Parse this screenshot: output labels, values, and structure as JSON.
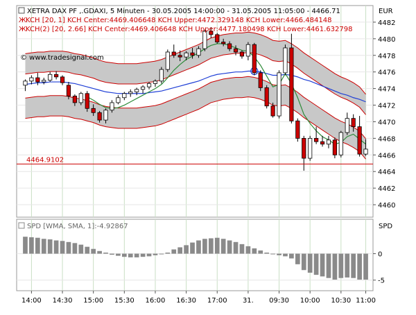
{
  "chart_data": [
    {
      "type": "candlestick",
      "title": "XETRA DAX PF ,.GDAXI, 5 Minuten - 30.05.2005 14:00:00 - 31.05.2005 11:05:00 - 4466.71",
      "currency": "EUR",
      "watermark": "© www.tradesignal.com",
      "indicator_labels": [
        "KCH [20, 1] KCH Center:4469.406648 KCH Upper:4472.329148 KCH Lower:4466.484148",
        "KCH(2) [20, 2.66] KCH Center:4469.406648 KCH Upper:4477.180498 KCH Lower:4461.632798"
      ],
      "y_ticks": [
        "4482",
        "4480",
        "4478",
        "4476",
        "4474",
        "4472",
        "4470",
        "4468",
        "4466",
        "4464",
        "4462",
        "4460"
      ],
      "ylim": [
        4458.5,
        4484
      ],
      "horizontal_line": {
        "value": 4464.91,
        "label": "4464.9102",
        "color": "#cc0000"
      },
      "x_ticks": [
        "14:00",
        "14:30",
        "15:00",
        "15:30",
        "16:00",
        "16:30",
        "17:00",
        "31.",
        "09:30",
        "10:00",
        "10:30",
        "11:00"
      ],
      "bar_count": 56,
      "candles": [
        {
          "o": 4474.4,
          "h": 4475.1,
          "l": 4473.7,
          "c": 4474.9
        },
        {
          "o": 4474.9,
          "h": 4475.6,
          "l": 4474.5,
          "c": 4475.3
        },
        {
          "o": 4475.3,
          "h": 4475.9,
          "l": 4474.4,
          "c": 4474.8
        },
        {
          "o": 4474.8,
          "h": 4475.3,
          "l": 4474.5,
          "c": 4475.0
        },
        {
          "o": 4475.0,
          "h": 4476.0,
          "l": 4474.8,
          "c": 4475.7
        },
        {
          "o": 4475.7,
          "h": 4476.1,
          "l": 4475.1,
          "c": 4475.4
        },
        {
          "o": 4475.4,
          "h": 4475.6,
          "l": 4474.4,
          "c": 4474.7
        },
        {
          "o": 4474.4,
          "h": 4474.8,
          "l": 4472.7,
          "c": 4473.1
        },
        {
          "o": 4473.1,
          "h": 4473.3,
          "l": 4471.9,
          "c": 4472.3
        },
        {
          "o": 4472.3,
          "h": 4473.6,
          "l": 4472.0,
          "c": 4473.4
        },
        {
          "o": 4473.4,
          "h": 4473.7,
          "l": 4471.2,
          "c": 4471.6
        },
        {
          "o": 4471.6,
          "h": 4472.1,
          "l": 4470.7,
          "c": 4471.1
        },
        {
          "o": 4471.1,
          "h": 4471.3,
          "l": 4469.9,
          "c": 4470.2
        },
        {
          "o": 4470.2,
          "h": 4471.6,
          "l": 4469.8,
          "c": 4471.4
        },
        {
          "o": 4471.4,
          "h": 4472.6,
          "l": 4471.1,
          "c": 4472.3
        },
        {
          "o": 4472.3,
          "h": 4473.2,
          "l": 4472.1,
          "c": 4472.9
        },
        {
          "o": 4472.9,
          "h": 4473.6,
          "l": 4472.6,
          "c": 4473.4
        },
        {
          "o": 4473.4,
          "h": 4473.9,
          "l": 4473.0,
          "c": 4473.6
        },
        {
          "o": 4473.6,
          "h": 4474.1,
          "l": 4473.2,
          "c": 4473.9
        },
        {
          "o": 4473.9,
          "h": 4474.4,
          "l": 4473.4,
          "c": 4474.2
        },
        {
          "o": 4474.2,
          "h": 4474.8,
          "l": 4473.9,
          "c": 4474.6
        },
        {
          "o": 4474.6,
          "h": 4475.1,
          "l": 4474.2,
          "c": 4474.9
        },
        {
          "o": 4474.9,
          "h": 4476.6,
          "l": 4474.6,
          "c": 4476.3
        },
        {
          "o": 4476.3,
          "h": 4478.7,
          "l": 4476.0,
          "c": 4478.4
        },
        {
          "o": 4478.4,
          "h": 4479.3,
          "l": 4477.7,
          "c": 4478.0
        },
        {
          "o": 4478.0,
          "h": 4478.6,
          "l": 4477.3,
          "c": 4477.8
        },
        {
          "o": 4477.8,
          "h": 4478.5,
          "l": 4477.4,
          "c": 4478.3
        },
        {
          "o": 4478.3,
          "h": 4478.9,
          "l": 4477.6,
          "c": 4478.0
        },
        {
          "o": 4478.0,
          "h": 4479.1,
          "l": 4477.7,
          "c": 4478.8
        },
        {
          "o": 4478.8,
          "h": 4481.1,
          "l": 4478.5,
          "c": 4480.9
        },
        {
          "o": 4480.9,
          "h": 4481.4,
          "l": 4480.1,
          "c": 4480.5
        },
        {
          "o": 4480.5,
          "h": 4480.7,
          "l": 4479.4,
          "c": 4479.6
        },
        {
          "o": 4479.6,
          "h": 4480.0,
          "l": 4479.1,
          "c": 4479.4
        },
        {
          "o": 4479.4,
          "h": 4479.7,
          "l": 4478.5,
          "c": 4478.8
        },
        {
          "o": 4478.8,
          "h": 4479.2,
          "l": 4478.0,
          "c": 4478.4
        },
        {
          "o": 4478.4,
          "h": 4478.6,
          "l": 4477.6,
          "c": 4477.9
        },
        {
          "o": 4477.9,
          "h": 4479.6,
          "l": 4477.4,
          "c": 4479.3
        },
        {
          "o": 4479.3,
          "h": 4479.5,
          "l": 4475.6,
          "c": 4475.9
        },
        {
          "o": 4475.9,
          "h": 4476.2,
          "l": 4473.7,
          "c": 4474.1
        },
        {
          "o": 4474.1,
          "h": 4474.4,
          "l": 4471.6,
          "c": 4471.9
        },
        {
          "o": 4471.9,
          "h": 4472.3,
          "l": 4470.5,
          "c": 4470.7
        },
        {
          "o": 4470.7,
          "h": 4476.2,
          "l": 4470.4,
          "c": 4475.9
        },
        {
          "o": 4475.9,
          "h": 4479.3,
          "l": 4475.6,
          "c": 4478.9
        },
        {
          "o": 4478.9,
          "h": 4480.6,
          "l": 4469.8,
          "c": 4470.1
        },
        {
          "o": 4470.1,
          "h": 4470.4,
          "l": 4467.6,
          "c": 4468.0
        },
        {
          "o": 4468.0,
          "h": 4468.3,
          "l": 4464.1,
          "c": 4465.6
        },
        {
          "o": 4465.6,
          "h": 4468.3,
          "l": 4465.3,
          "c": 4468.0
        },
        {
          "o": 4468.0,
          "h": 4469.4,
          "l": 4467.3,
          "c": 4467.6
        },
        {
          "o": 4467.6,
          "h": 4468.3,
          "l": 4467.0,
          "c": 4467.3
        },
        {
          "o": 4467.3,
          "h": 4468.3,
          "l": 4466.8,
          "c": 4467.8
        },
        {
          "o": 4467.8,
          "h": 4468.1,
          "l": 4465.6,
          "c": 4466.0
        },
        {
          "o": 4466.0,
          "h": 4468.9,
          "l": 4465.7,
          "c": 4468.7
        },
        {
          "o": 4468.7,
          "h": 4471.1,
          "l": 4468.4,
          "c": 4470.4
        },
        {
          "o": 4470.4,
          "h": 4470.9,
          "l": 4468.8,
          "c": 4469.4
        },
        {
          "o": 4469.4,
          "h": 4470.7,
          "l": 4465.8,
          "c": 4466.1
        },
        {
          "o": 4466.1,
          "h": 4467.9,
          "l": 4465.9,
          "c": 4466.7
        }
      ],
      "kch1": {
        "color": "#cc0000",
        "center": [
          4474.3,
          4474.4,
          4474.5,
          4474.5,
          4474.6,
          4474.6,
          4474.6,
          4474.5,
          4474.3,
          4474.2,
          4474.0,
          4473.8,
          4473.5,
          4473.3,
          4473.2,
          4473.1,
          4473.1,
          4473.1,
          4473.1,
          4473.2,
          4473.3,
          4473.4,
          4473.6,
          4473.9,
          4474.2,
          4474.5,
          4474.8,
          4475.1,
          4475.4,
          4475.8,
          4476.2,
          4476.4,
          4476.6,
          4476.7,
          4476.8,
          4476.8,
          4476.9,
          4476.8,
          4476.6,
          4476.3,
          4475.9,
          4475.8,
          4475.9,
          4475.5,
          4475.0,
          4474.4,
          4473.9,
          4473.4,
          4472.9,
          4472.4,
          4471.9,
          4471.5,
          4471.2,
          4470.8,
          4470.3,
          4469.4
        ],
        "offset": 1.45
      },
      "kch2": {
        "color": "#cc0000",
        "fill": "#c8c8c8",
        "offset": 3.9
      },
      "ma_lines": [
        {
          "color": "#1f3fd6",
          "values": [
            4474.5,
            4474.6,
            4474.7,
            4474.7,
            4474.8,
            4474.8,
            4474.8,
            4474.7,
            4474.6,
            4474.4,
            4474.2,
            4474.0,
            4473.8,
            4473.6,
            4473.5,
            4473.4,
            4473.4,
            4473.4,
            4473.4,
            4473.4,
            4473.5,
            4473.6,
            4473.7,
            4473.9,
            4474.1,
            4474.3,
            4474.5,
            4474.7,
            4474.9,
            4475.2,
            4475.5,
            4475.7,
            4475.8,
            4475.9,
            4476.0,
            4476.0,
            4476.1,
            4476.1,
            4476.0,
            4475.8,
            4475.6,
            4475.6,
            4475.7,
            4475.6,
            4475.4,
            4475.1,
            4474.9,
            4474.6,
            4474.3,
            4474.0,
            4473.7,
            4473.4,
            4473.2,
            4472.9,
            4472.7,
            4472.4
          ]
        },
        {
          "color": "#2e8b3a",
          "values": [
            null,
            null,
            null,
            null,
            null,
            null,
            null,
            null,
            null,
            null,
            4473.0,
            4472.6,
            4472.1,
            4471.7,
            4471.6,
            4471.7,
            4472.0,
            4472.4,
            4472.8,
            4473.2,
            4473.6,
            4474.0,
            4474.5,
            4475.3,
            4476.2,
            4476.9,
            4477.5,
            4477.9,
            4478.3,
            4478.8,
            4479.2,
            4479.4,
            4479.4,
            4479.2,
            4478.9,
            4478.6,
            4478.5,
            4477.8,
            4476.8,
            4475.5,
            4474.2,
            4474.5,
            4475.8,
            4474.6,
            4472.9,
            4470.9,
            4469.8,
            4468.9,
            4468.2,
            4467.8,
            4467.3,
            4467.5,
            4468.2,
            4468.5,
            4467.9,
            4467.3
          ]
        }
      ]
    },
    {
      "type": "bar",
      "title": "SPD [WMA, SMA, 1]:-4.92867",
      "label": "SPD",
      "y_ticks": [
        "0",
        "-5"
      ],
      "ylim": [
        -7,
        6.5
      ],
      "color": "#8a8a8a",
      "values": [
        3.2,
        3.1,
        3.0,
        2.8,
        2.7,
        2.5,
        2.4,
        2.2,
        2.0,
        1.7,
        1.3,
        0.9,
        0.5,
        0.2,
        -0.2,
        -0.4,
        -0.6,
        -0.7,
        -0.7,
        -0.6,
        -0.5,
        -0.3,
        -0.1,
        0.2,
        0.8,
        1.2,
        1.6,
        2.1,
        2.5,
        2.8,
        2.9,
        3.0,
        2.8,
        2.5,
        2.2,
        1.8,
        1.4,
        1.0,
        0.6,
        0.2,
        -0.1,
        -0.3,
        -0.5,
        -0.9,
        -2.0,
        -3.1,
        -3.6,
        -4.0,
        -4.3,
        -4.6,
        -4.9,
        -4.6,
        -4.5,
        -4.6,
        -4.9,
        -4.9
      ]
    }
  ]
}
